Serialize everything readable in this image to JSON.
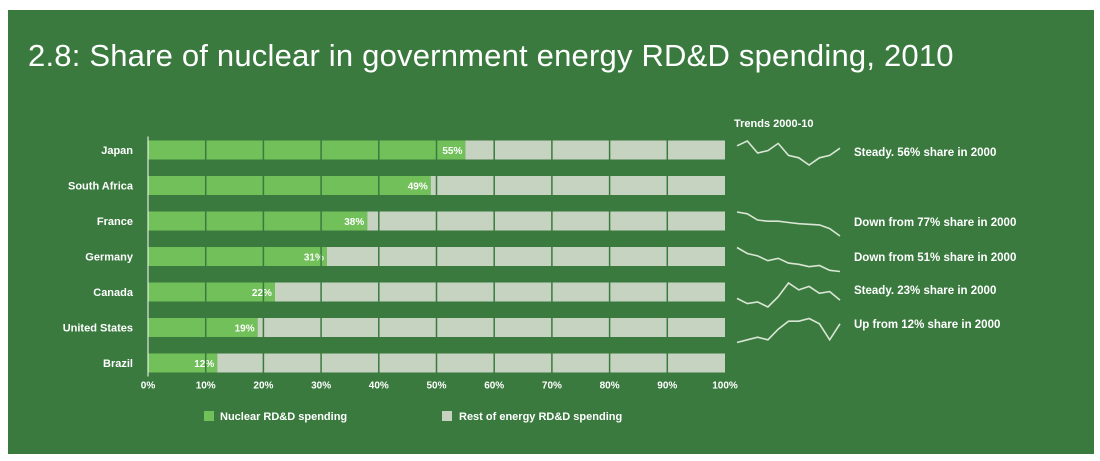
{
  "title": "2.8:  Share of nuclear in government energy RD&D spending, 2010",
  "colors": {
    "background": "#3a7a3f",
    "nuclear": "#72c05a",
    "rest": "#c5d3c0",
    "text": "#ffffff",
    "grid": "#3a7a3f",
    "trend": "#d8e6d3"
  },
  "trends_heading": "Trends 2000-10",
  "chart_data": {
    "type": "bar",
    "orientation": "horizontal",
    "stacked": "percent",
    "categories": [
      "Japan",
      "South Africa",
      "France",
      "Germany",
      "Canada",
      "United States",
      "Brazil"
    ],
    "series": [
      {
        "name": "Nuclear RD&D spending",
        "values": [
          55,
          49,
          38,
          31,
          22,
          19,
          12
        ]
      },
      {
        "name": "Rest of energy RD&D spending",
        "values": [
          45,
          51,
          62,
          69,
          78,
          81,
          88
        ]
      }
    ],
    "data_labels": [
      "55%",
      "49%",
      "38%",
      "31%",
      "22%",
      "19%",
      "12%"
    ],
    "xlim": [
      0,
      100
    ],
    "x_ticks": [
      "0%",
      "10%",
      "20%",
      "30%",
      "40%",
      "50%",
      "60%",
      "70%",
      "80%",
      "90%",
      "100%"
    ],
    "grid": true,
    "legend_position": "bottom"
  },
  "trends": [
    {
      "country": "Japan",
      "note": "Steady.  56% share in 2000",
      "values": [
        56,
        58,
        53,
        54,
        57,
        52,
        51,
        48,
        51,
        52,
        55
      ]
    },
    {
      "country": "South Africa",
      "note": "",
      "values": []
    },
    {
      "country": "France",
      "note": "Down from 77%  share in 2000",
      "values": [
        77,
        74,
        64,
        62,
        62,
        60,
        58,
        57,
        56,
        50,
        38
      ]
    },
    {
      "country": "Germany",
      "note": "Down from 51% share in 2000",
      "values": [
        51,
        46,
        44,
        40,
        42,
        38,
        37,
        35,
        36,
        32,
        31
      ]
    },
    {
      "country": "Canada",
      "note": "Steady. 23% share in 2000",
      "values": [
        23,
        20,
        21,
        18,
        24,
        32,
        28,
        30,
        26,
        27,
        22
      ]
    },
    {
      "country": "United States",
      "note": "Up from 12% share in 2000",
      "values": [
        12,
        13,
        14,
        13,
        17,
        20,
        20,
        21,
        19,
        13,
        19
      ]
    },
    {
      "country": "Brazil",
      "note": "",
      "values": []
    }
  ]
}
